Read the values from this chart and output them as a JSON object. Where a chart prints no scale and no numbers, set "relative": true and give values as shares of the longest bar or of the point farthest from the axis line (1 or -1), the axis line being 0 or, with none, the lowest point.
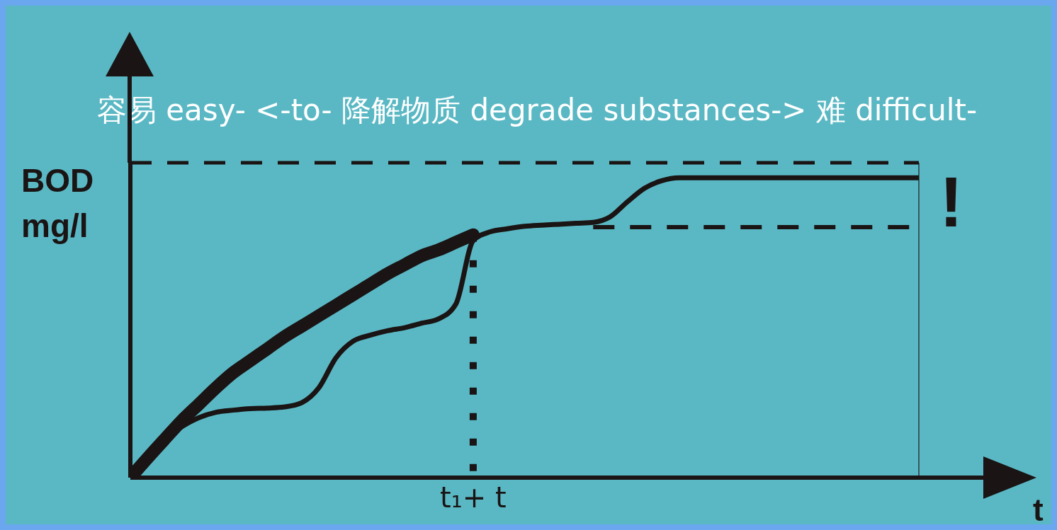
{
  "chart_data": {
    "type": "line",
    "relative": true,
    "title": "容易 easy- <-to- 降解物质 degrade substances->  难 difficult-",
    "xlabel": "t",
    "ylabel": "BOD mg/l",
    "marker": "none",
    "grid": false,
    "line_style": "solid",
    "annotations": [
      "!",
      "t₁+ t"
    ],
    "categories": [
      null,
      null,
      null,
      null,
      null,
      null,
      null,
      null,
      null,
      null,
      null,
      null,
      null,
      null,
      null,
      null,
      null,
      null,
      null,
      null,
      null,
      null,
      null,
      null,
      null,
      null,
      null,
      null,
      null,
      null,
      null,
      null,
      null,
      null,
      null,
      null,
      null,
      null,
      null,
      null,
      null,
      null,
      null,
      null,
      null,
      null,
      null
    ],
    "series": [
      {
        "color": "#1a1414",
        "values": [
          0,
          0.065,
          0.128,
          0.19,
          0.245,
          0.3,
          0.35,
          0.39,
          0.43,
          0.47,
          0.505,
          0.54,
          0.575,
          0.61,
          0.645,
          0.68,
          0.71,
          0.74,
          0.76,
          0.785,
          0.81,
          null,
          null,
          null,
          null,
          null,
          null,
          null,
          null,
          null,
          null,
          null,
          null,
          null,
          null,
          null,
          null,
          null,
          null,
          null,
          null,
          null,
          null,
          null,
          null,
          null,
          null
        ]
      },
      {
        "color": "#1a1414",
        "values": [
          0,
          0.07,
          0.13,
          0.17,
          0.2,
          0.218,
          0.225,
          0.23,
          0.232,
          0.236,
          0.25,
          0.3,
          0.4,
          0.455,
          0.475,
          0.49,
          0.5,
          0.515,
          0.53,
          0.58,
          0.79,
          0.82,
          0.83,
          0.838,
          0.842,
          0.845,
          0.848,
          0.851,
          0.87,
          0.92,
          0.965,
          0.99,
          1,
          1,
          1,
          1,
          1,
          1,
          1,
          1,
          1,
          1,
          1,
          1,
          1,
          1,
          1
        ]
      },
      {
        "color": "#1a1414",
        "line_style": "dashed",
        "values": [
          null,
          null,
          null,
          null,
          null,
          null,
          null,
          null,
          null,
          null,
          null,
          null,
          null,
          null,
          null,
          null,
          null,
          null,
          null,
          null,
          null,
          null,
          null,
          null,
          null,
          null,
          null,
          0.835,
          0.835,
          0.835,
          0.835,
          0.835,
          0.835,
          0.835,
          0.835,
          0.835,
          0.835,
          0.835,
          0.835,
          0.835,
          0.835,
          0.835,
          0.835,
          0.835,
          0.835,
          0.835,
          0.835
        ]
      }
    ],
    "ref_lines": [
      {
        "axis": "y",
        "value": 1.05,
        "line_style": "dashed",
        "color": "#1a1414"
      }
    ]
  }
}
